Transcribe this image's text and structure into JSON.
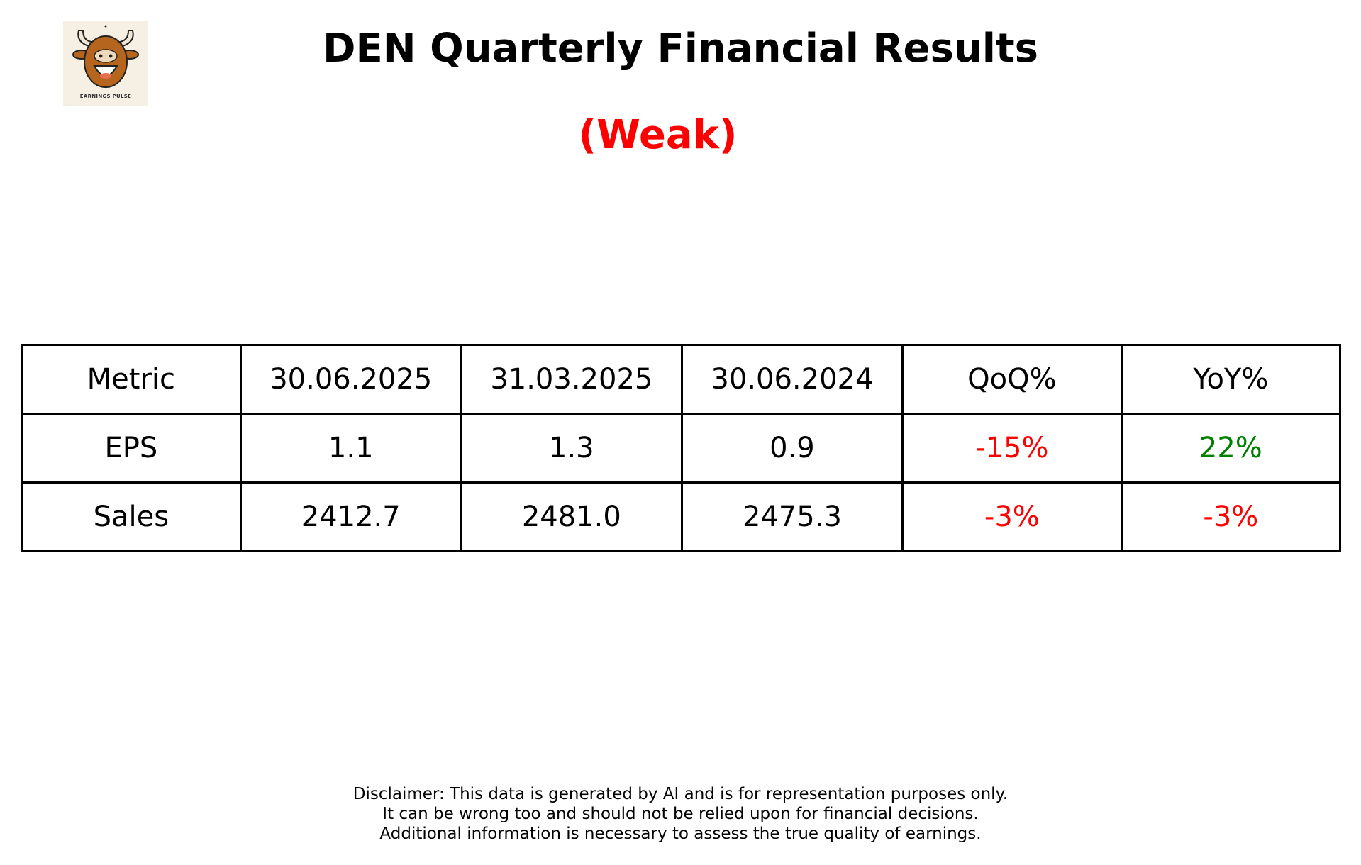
{
  "logo": {
    "text": "EARNINGS PULSE",
    "icon": "laughing-bull-icon"
  },
  "header": {
    "title": "DEN Quarterly Financial Results",
    "rating": "(Weak)",
    "rating_color": "#ff0000"
  },
  "table": {
    "headers": [
      "Metric",
      "30.06.2025",
      "31.03.2025",
      "30.06.2024",
      "QoQ%",
      "YoY%"
    ],
    "rows": [
      {
        "cells": [
          "EPS",
          "1.1",
          "1.3",
          "0.9",
          "-15%",
          "22%"
        ],
        "colors": [
          "#000",
          "#000",
          "#000",
          "#000",
          "#ff0000",
          "#008000"
        ]
      },
      {
        "cells": [
          "Sales",
          "2412.7",
          "2481.0",
          "2475.3",
          "-3%",
          "-3%"
        ],
        "colors": [
          "#000",
          "#000",
          "#000",
          "#000",
          "#ff0000",
          "#ff0000"
        ]
      }
    ]
  },
  "disclaimer": [
    "Disclaimer: This data is generated by AI and is for representation purposes only.",
    "It can be wrong too and should not be relied upon for financial decisions.",
    "Additional information is necessary to assess the true quality of earnings."
  ]
}
